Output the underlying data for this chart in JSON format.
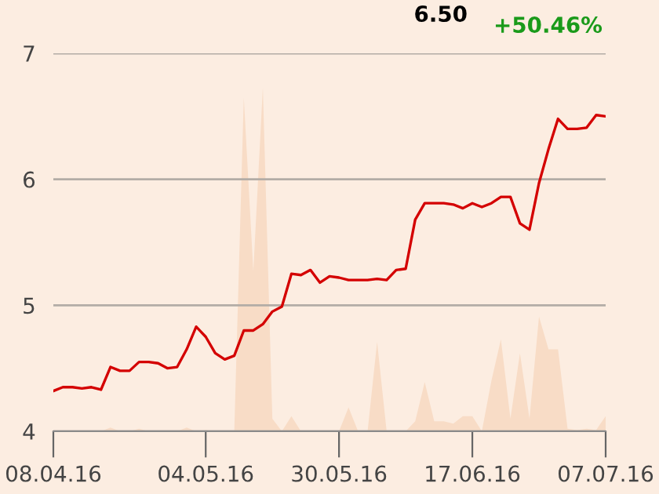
{
  "chart_data": {
    "type": "line",
    "categories": [
      "08.04.16",
      null,
      null,
      null,
      null,
      null,
      null,
      null,
      null,
      null,
      null,
      null,
      null,
      null,
      null,
      null,
      "04.05.16",
      null,
      null,
      null,
      null,
      null,
      null,
      null,
      null,
      null,
      null,
      null,
      null,
      null,
      "30.05.16",
      null,
      null,
      null,
      null,
      null,
      null,
      null,
      null,
      null,
      null,
      null,
      null,
      null,
      "17.06.16",
      null,
      null,
      null,
      null,
      null,
      null,
      null,
      null,
      null,
      null,
      null,
      null,
      null,
      "07.07.16"
    ],
    "series": [
      {
        "type": "area",
        "color": "#f8dcc6",
        "values": [
          4.0,
          4.0,
          4.0,
          4.0,
          4.0,
          4.0,
          4.03,
          4.0,
          4.0,
          4.02,
          4.0,
          4.0,
          4.0,
          4.0,
          4.03,
          4.0,
          4.01,
          4.0,
          4.0,
          4.0,
          6.65,
          5.27,
          6.73,
          4.1,
          4.0,
          4.12,
          4.0,
          4.0,
          4.0,
          4.0,
          4.0,
          4.19,
          4.0,
          4.0,
          4.71,
          4.0,
          4.0,
          4.0,
          4.08,
          4.39,
          4.08,
          4.08,
          4.06,
          4.12,
          4.12,
          4.0,
          4.4,
          4.73,
          4.1,
          4.62,
          4.1,
          4.91,
          4.65,
          4.65,
          4.02,
          4.01,
          4.02,
          4.01,
          4.12
        ]
      },
      {
        "color": "#d40000",
        "values": [
          4.32,
          4.35,
          4.35,
          4.34,
          4.35,
          4.33,
          4.51,
          4.48,
          4.48,
          4.55,
          4.55,
          4.54,
          4.5,
          4.51,
          4.65,
          4.83,
          4.75,
          4.62,
          4.57,
          4.6,
          4.8,
          4.8,
          4.85,
          4.95,
          4.99,
          5.25,
          5.24,
          5.28,
          5.18,
          5.23,
          5.22,
          5.2,
          5.2,
          5.2,
          5.21,
          5.2,
          5.28,
          5.29,
          5.68,
          5.81,
          5.81,
          5.81,
          5.8,
          5.77,
          5.81,
          5.78,
          5.81,
          5.86,
          5.86,
          5.65,
          5.6,
          5.97,
          6.24,
          6.48,
          6.4,
          6.4,
          6.41,
          6.51,
          6.5
        ]
      }
    ],
    "ylim": [
      4,
      7
    ],
    "yticks": [
      4,
      5,
      6,
      7
    ],
    "grid": "y",
    "annotations": [
      "6.50",
      "+50.46%"
    ]
  }
}
